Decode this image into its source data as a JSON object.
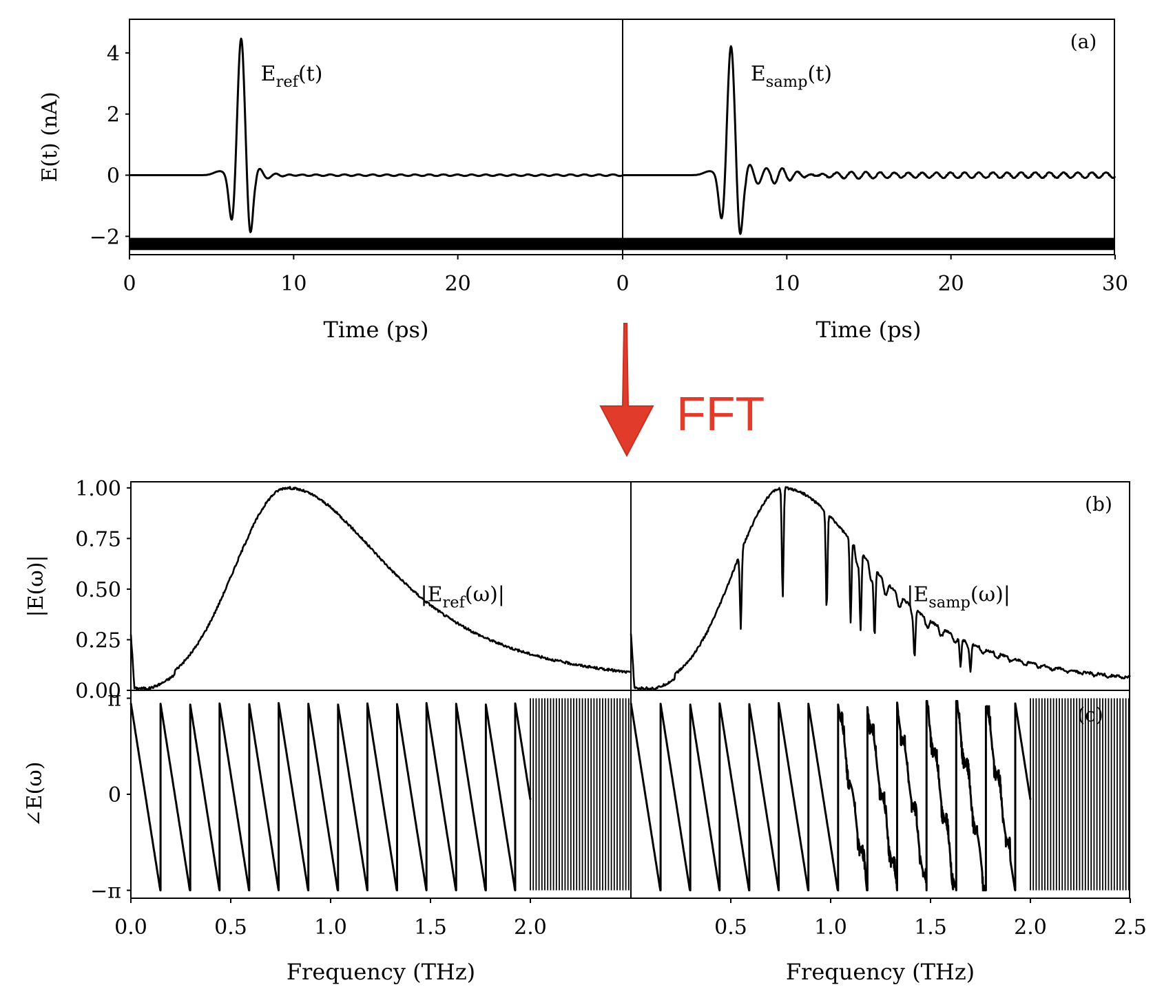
{
  "arrow": {
    "label": "FFT",
    "color": "#e03b2b"
  },
  "colors": {
    "line": "#000000",
    "background": "#ffffff"
  },
  "chart_data": [
    {
      "panel": "(a)",
      "type": "line",
      "ylabel": "E(t) (nA)",
      "ylim": [
        -2.6,
        5.1
      ],
      "yticks": [
        {
          "v": 4,
          "label": "4"
        },
        {
          "v": 2,
          "label": "2"
        },
        {
          "v": 0,
          "label": "0"
        },
        {
          "v": -2,
          "label": "−2"
        }
      ],
      "subplots": [
        {
          "xlabel": "Time (ps)",
          "xlim": [
            0,
            30
          ],
          "xticks": [
            {
              "v": 0,
              "label": "0"
            },
            {
              "v": 10,
              "label": "10"
            },
            {
              "v": 20,
              "label": "20"
            }
          ],
          "series_label": {
            "main": "E",
            "sub": "ref",
            "tail": "(t)",
            "at": [
              8.0,
              3.1
            ]
          },
          "pulse": {
            "t0": 6.8,
            "peak": 4.5,
            "pre": -1.6,
            "post": -2.0,
            "ring": 0.3
          }
        },
        {
          "xlabel": "Time (ps)",
          "xlim": [
            0,
            30
          ],
          "xticks": [
            {
              "v": 0,
              "label": "0"
            },
            {
              "v": 10,
              "label": "10"
            },
            {
              "v": 20,
              "label": "20"
            },
            {
              "v": 30,
              "label": "30"
            }
          ],
          "series_label": {
            "main": "E",
            "sub": "samp",
            "tail": "(t)",
            "at": [
              7.8,
              3.1
            ]
          },
          "pulse": {
            "t0": 6.6,
            "peak": 4.25,
            "pre": -1.55,
            "post": -2.05,
            "ring": 0.38
          }
        }
      ]
    },
    {
      "panel": "(b)",
      "type": "line",
      "ylabel": "|E(ω)|",
      "ylim": [
        0,
        1.03
      ],
      "yticks": [
        {
          "v": 1.0,
          "label": "1.00"
        },
        {
          "v": 0.75,
          "label": "0.75"
        },
        {
          "v": 0.5,
          "label": "0.50"
        },
        {
          "v": 0.25,
          "label": "0.25"
        },
        {
          "v": 0.0,
          "label": "0.00"
        }
      ],
      "subplots": [
        {
          "xlim": [
            0,
            2.5
          ],
          "series_label": {
            "main": "|E",
            "sub": "ref",
            "tail": "(ω)|",
            "at": [
              1.45,
              0.44
            ]
          },
          "spectrum": {
            "peak_f": 0.78,
            "width_lo": 0.26,
            "width_hi": 0.52,
            "dips": []
          }
        },
        {
          "xlim": [
            0,
            2.5
          ],
          "series_label": {
            "main": "|E",
            "sub": "samp",
            "tail": "(ω)|",
            "at": [
              1.38,
              0.44
            ]
          },
          "spectrum": {
            "peak_f": 0.76,
            "width_lo": 0.24,
            "width_hi": 0.46,
            "dips": [
              0.55,
              0.76,
              0.98,
              1.1,
              1.15,
              1.22,
              1.42,
              1.65,
              1.7
            ]
          }
        }
      ]
    },
    {
      "panel": "(c)",
      "type": "line",
      "ylabel": "∠E(ω)",
      "ylim": [
        -3.4,
        3.4
      ],
      "yticks": [
        {
          "v": 3.14159,
          "label": "π"
        },
        {
          "v": 0,
          "label": "0"
        },
        {
          "v": -3.14159,
          "label": "−π"
        }
      ],
      "subplots": [
        {
          "xlabel": "Frequency (THz)",
          "xlim": [
            0,
            2.5
          ],
          "xticks": [
            {
              "v": 0.0,
              "label": "0.0"
            },
            {
              "v": 0.5,
              "label": "0.5"
            },
            {
              "v": 1.0,
              "label": "1.0"
            },
            {
              "v": 1.5,
              "label": "1.5"
            },
            {
              "v": 2.0,
              "label": "2.0"
            }
          ],
          "wrap_period": 0.148,
          "noise_from": 2.0
        },
        {
          "xlabel": "Frequency (THz)",
          "xlim": [
            0,
            2.5
          ],
          "xticks": [
            {
              "v": 0.5,
              "label": "0.5"
            },
            {
              "v": 1.0,
              "label": "1.0"
            },
            {
              "v": 1.5,
              "label": "1.5"
            },
            {
              "v": 2.0,
              "label": "2.0"
            },
            {
              "v": 2.5,
              "label": "2.5"
            }
          ],
          "wrap_period": 0.148,
          "noise_from": 2.0
        }
      ]
    }
  ]
}
